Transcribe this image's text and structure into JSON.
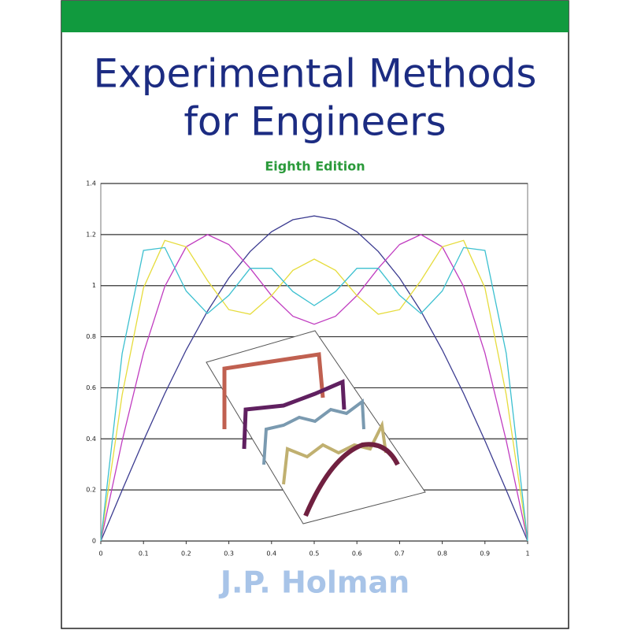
{
  "header": {
    "title_line1": "Experimental Methods",
    "title_line2": "for Engineers",
    "edition": "Eighth Edition"
  },
  "author": "J.P. Holman",
  "chart_data": {
    "type": "line",
    "x": [
      0,
      0.05,
      0.1,
      0.15,
      0.2,
      0.25,
      0.3,
      0.35,
      0.4,
      0.45,
      0.5,
      0.55,
      0.6,
      0.65,
      0.7,
      0.75,
      0.8,
      0.85,
      0.9,
      0.95,
      1
    ],
    "series": [
      {
        "color": "#3b3b90",
        "values": [
          0,
          0.199,
          0.393,
          0.578,
          0.748,
          0.9,
          1.03,
          1.134,
          1.211,
          1.258,
          1.273,
          1.258,
          1.211,
          1.134,
          1.03,
          0.9,
          0.748,
          0.578,
          0.393,
          0.199,
          0
        ]
      },
      {
        "color": "#c03cc0",
        "values": [
          0,
          0.392,
          0.736,
          0.997,
          1.152,
          1.2,
          1.161,
          1.068,
          0.961,
          0.88,
          0.849,
          0.88,
          0.961,
          1.068,
          1.161,
          1.2,
          1.152,
          0.997,
          0.736,
          0.392,
          0
        ]
      },
      {
        "color": "#e6dc3c",
        "values": [
          0,
          0.572,
          0.991,
          1.177,
          1.152,
          1.02,
          0.906,
          0.888,
          0.961,
          1.06,
          1.104,
          1.06,
          0.961,
          0.888,
          0.906,
          1.02,
          1.152,
          1.177,
          0.991,
          0.572,
          0
        ]
      },
      {
        "color": "#3cc0d0",
        "values": [
          0,
          0.734,
          1.138,
          1.149,
          0.979,
          0.891,
          0.962,
          1.068,
          1.068,
          0.977,
          0.922,
          0.977,
          1.068,
          1.068,
          0.962,
          0.891,
          0.979,
          1.149,
          1.138,
          0.734,
          0
        ]
      }
    ],
    "xlim": [
      0,
      1
    ],
    "ylim": [
      0,
      1.4
    ],
    "xticks": [
      0,
      0.1,
      0.2,
      0.3,
      0.4,
      0.5,
      0.6,
      0.7,
      0.8,
      0.9,
      1
    ],
    "yticks": [
      0,
      0.2,
      0.4,
      0.6,
      0.8,
      1,
      1.2,
      1.4
    ],
    "grid": true
  }
}
